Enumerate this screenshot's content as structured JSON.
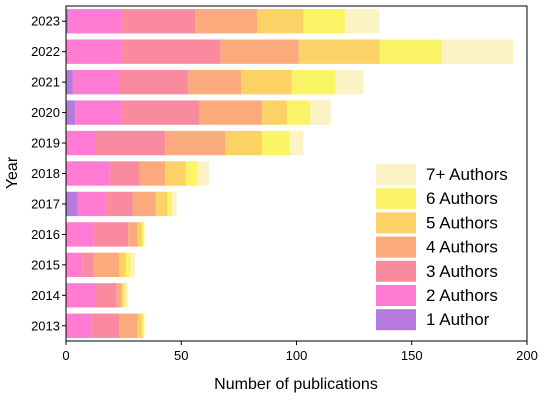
{
  "chart_data": {
    "type": "bar",
    "orientation": "horizontal",
    "stacked": true,
    "title": "",
    "xlabel": "Number of publications",
    "ylabel": "Year",
    "xlim": [
      0,
      200
    ],
    "x_ticks": [
      0,
      50,
      100,
      150,
      200
    ],
    "grid": false,
    "legend_position": "bottom-right",
    "categories": [
      "2023",
      "2022",
      "2021",
      "2020",
      "2019",
      "2018",
      "2017",
      "2016",
      "2015",
      "2014",
      "2013"
    ],
    "series": [
      {
        "name": "1 Author",
        "color": "#b57bdc",
        "values": [
          1,
          0,
          3,
          4,
          0,
          0,
          5,
          0,
          0,
          0,
          0
        ]
      },
      {
        "name": "2 Authors",
        "color": "#ff7bd4",
        "values": [
          23,
          24,
          20,
          20,
          13,
          19,
          12,
          12,
          7,
          13,
          11
        ]
      },
      {
        "name": "3 Authors",
        "color": "#fa8aa0",
        "values": [
          32,
          43,
          30,
          34,
          30,
          13,
          12,
          15,
          5,
          9,
          12
        ]
      },
      {
        "name": "4 Authors",
        "color": "#fbaa7e",
        "values": [
          27,
          34,
          23,
          27,
          26,
          11,
          10,
          4,
          11,
          2,
          8
        ]
      },
      {
        "name": "5 Authors",
        "color": "#fcd266",
        "values": [
          20,
          35,
          22,
          11,
          16,
          9,
          5,
          2,
          3,
          1,
          2
        ]
      },
      {
        "name": "6 Authors",
        "color": "#fbf466",
        "values": [
          18,
          27,
          19,
          10,
          12,
          5,
          2,
          1,
          2,
          1,
          1
        ]
      },
      {
        "name": "7+ Authors",
        "color": "#fbf3c3",
        "values": [
          15,
          31,
          12,
          9,
          6,
          5,
          2,
          0,
          2,
          1,
          0
        ]
      }
    ],
    "legend_order": [
      "7+ Authors",
      "6 Authors",
      "5 Authors",
      "4 Authors",
      "3 Authors",
      "2 Authors",
      "1 Author"
    ]
  }
}
